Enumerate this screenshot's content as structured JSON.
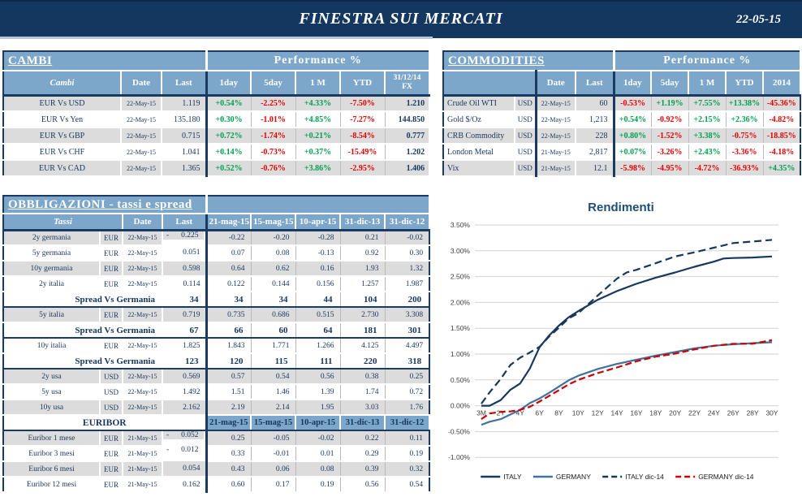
{
  "header": {
    "title": "FINESTRA SUI MERCATI",
    "date": "22-05-15"
  },
  "colors": {
    "topbar_navy": "#14375f",
    "header_blue": "#7da7ca",
    "row_gray": "#dcdcdc",
    "positive_green": "#00a050",
    "negative_red": "#e60000",
    "italy_line": "#17375e",
    "germany_line": "#41719c",
    "germany_dic14_line": "#cc0000"
  },
  "cambi": {
    "title": "CAMBI",
    "performance_label": "Performance  %",
    "headers": [
      "Cambi",
      "Date",
      "Last",
      "1day",
      "5day",
      "1 M",
      "YTD",
      "31/12/14",
      "FX"
    ],
    "rows": [
      [
        "EUR Vs USD",
        "22-May-15",
        "1.119",
        "+0.54%",
        "-2.25%",
        "+4.33%",
        "-7.50%",
        "1.210"
      ],
      [
        "EUR Vs Yen",
        "22-May-15",
        "135.180",
        "+0.30%",
        "-1.01%",
        "+4.85%",
        "-7.27%",
        "144.850"
      ],
      [
        "EUR Vs GBP",
        "22-May-15",
        "0.715",
        "+0.72%",
        "-1.74%",
        "+0.21%",
        "-8.54%",
        "0.777"
      ],
      [
        "EUR Vs CHF",
        "22-May-15",
        "1.041",
        "+0.14%",
        "-0.73%",
        "+0.37%",
        "-15.49%",
        "1.202"
      ],
      [
        "EUR Vs CAD",
        "22-May-15",
        "1.365",
        "+0.52%",
        "-0.76%",
        "+3.86%",
        "-2.95%",
        "1.406"
      ]
    ]
  },
  "commodities": {
    "title": "COMMODITIES",
    "performance_label": "Performance  %",
    "headers": [
      "Date",
      "Last",
      "1day",
      "5day",
      "1 M",
      "YTD",
      "2014"
    ],
    "rows": [
      [
        "Crude Oil WTI",
        "USD",
        "22-May-15",
        "60",
        "-0.53%",
        "+1.19%",
        "+7.55%",
        "+13.38%",
        "-45.36%"
      ],
      [
        "Gold $/Oz",
        "USD",
        "22-May-15",
        "1,213",
        "+0.54%",
        "-0.92%",
        "+2.15%",
        "+2.36%",
        "-4.82%"
      ],
      [
        "CRB Commodity",
        "USD",
        "22-May-15",
        "228",
        "+0.80%",
        "-1.52%",
        "+3.38%",
        "-0.75%",
        "-18.85%"
      ],
      [
        "London Metal",
        "USD",
        "21-May-15",
        "2,817",
        "+0.07%",
        "-3.26%",
        "+2.43%",
        "-3.36%",
        "-4.18%"
      ],
      [
        "Vix",
        "USD",
        "21-May-15",
        "12.1",
        "-5.98%",
        "-4.95%",
        "-4.72%",
        "-36.93%",
        "+4.35%"
      ]
    ]
  },
  "obbligazioni": {
    "title": "OBBLIGAZIONI - tassi e spread",
    "headers": [
      "Tassi",
      "Date",
      "Last",
      "21-mag-15",
      "15-mag-15",
      "10-apr-15",
      "31-dic-13",
      "31-dic-12"
    ],
    "rows": [
      {
        "type": "data",
        "name": "2y germania",
        "ccy": "EUR",
        "date": "22-May-15",
        "neg": true,
        "last": "0.225",
        "vals": [
          "-0.22",
          "-0.20",
          "-0.28",
          "0.21",
          "-0.02"
        ]
      },
      {
        "type": "data",
        "name": "5y germania",
        "ccy": "EUR",
        "date": "22-May-15",
        "last": "0.051",
        "vals": [
          "0.07",
          "0.08",
          "-0.13",
          "0.92",
          "0.30"
        ]
      },
      {
        "type": "data",
        "name": "10y germania",
        "ccy": "EUR",
        "date": "22-May-15",
        "last": "0.598",
        "vals": [
          "0.64",
          "0.62",
          "0.16",
          "1.93",
          "1.32"
        ]
      },
      {
        "type": "data",
        "sep": true,
        "name": "2y italia",
        "ccy": "EUR",
        "date": "22-May-15",
        "last": "0.114",
        "vals": [
          "0.122",
          "0.144",
          "0.156",
          "1.257",
          "1.987"
        ]
      },
      {
        "type": "spread",
        "label": "Spread Vs Germania",
        "last": "34",
        "vals": [
          "34",
          "34",
          "44",
          "104",
          "200"
        ]
      },
      {
        "type": "data",
        "name": "5y italia",
        "ccy": "EUR",
        "date": "22-May-15",
        "last": "0.719",
        "vals": [
          "0.735",
          "0.686",
          "0.515",
          "2.730",
          "3.308"
        ]
      },
      {
        "type": "spread",
        "label": "Spread Vs Germania",
        "last": "67",
        "vals": [
          "66",
          "60",
          "64",
          "181",
          "301"
        ]
      },
      {
        "type": "data",
        "name": "10y italia",
        "ccy": "EUR",
        "date": "22-May-15",
        "last": "1.825",
        "vals": [
          "1.843",
          "1.771",
          "1.266",
          "4.125",
          "4.497"
        ]
      },
      {
        "type": "spread",
        "label": "Spread Vs Germania",
        "last": "123",
        "vals": [
          "120",
          "115",
          "111",
          "220",
          "318"
        ]
      },
      {
        "type": "data",
        "name": "2y usa",
        "ccy": "USD",
        "date": "22-May-15",
        "last": "0.569",
        "vals": [
          "0.57",
          "0.54",
          "0.56",
          "0.38",
          "0.25"
        ]
      },
      {
        "type": "data",
        "name": "5y usa",
        "ccy": "USD",
        "date": "22-May-15",
        "last": "1.492",
        "vals": [
          "1.51",
          "1.46",
          "1.39",
          "1.74",
          "0.72"
        ]
      },
      {
        "type": "data",
        "name": "10y usa",
        "ccy": "USD",
        "date": "22-May-15",
        "last": "2.162",
        "vals": [
          "2.19",
          "2.14",
          "1.95",
          "3.03",
          "1.76"
        ]
      },
      {
        "type": "subheader",
        "label": "EURIBOR",
        "dates": [
          "21-mag-15",
          "15-mag-15",
          "10-apr-15",
          "31-dic-13",
          "31-dic-12"
        ]
      },
      {
        "type": "data",
        "name": "Euribor 1 mese",
        "ccy": "EUR",
        "date": "21-May-15",
        "neg": true,
        "last": "0.052",
        "vals": [
          "0.25",
          "-0.05",
          "-0.02",
          "0.22",
          "0.11"
        ]
      },
      {
        "type": "data",
        "name": "Euribor 3 mesi",
        "ccy": "EUR",
        "date": "21-May-15",
        "neg": true,
        "last": "0.012",
        "vals": [
          "0.33",
          "-0.01",
          "0.01",
          "0.29",
          "0.19"
        ]
      },
      {
        "type": "data",
        "name": "Euribor 6 mesi",
        "ccy": "EUR",
        "date": "21-May-15",
        "last": "0.054",
        "vals": [
          "0.43",
          "0.06",
          "0.08",
          "0.39",
          "0.32"
        ]
      },
      {
        "type": "data",
        "name": "Euribor 12 mesi",
        "ccy": "EUR",
        "date": "21-May-15",
        "last": "0.162",
        "vals": [
          "0.60",
          "0.17",
          "0.19",
          "0.56",
          "0.54"
        ]
      }
    ]
  },
  "chart_data": {
    "type": "line",
    "title": "Rendimenti",
    "categories": [
      "3M",
      "2Y",
      "4Y",
      "6Y",
      "8Y",
      "10Y",
      "12Y",
      "14Y",
      "16Y",
      "18Y",
      "20Y",
      "22Y",
      "24Y",
      "26Y",
      "28Y",
      "30Y"
    ],
    "category_years": [
      0.25,
      2,
      4,
      6,
      8,
      10,
      12,
      14,
      16,
      18,
      20,
      22,
      24,
      26,
      28,
      30
    ],
    "ylim": [
      -1.0,
      3.5
    ],
    "ytick_step": 0.5,
    "ylabel_format": "percent_2dp",
    "grid": "horizontal",
    "legend_position": "bottom",
    "series": [
      {
        "name": "ITALY",
        "color": "#17375e",
        "dash": null,
        "points": [
          [
            0.25,
            0.0
          ],
          [
            1,
            0.0
          ],
          [
            2,
            0.11
          ],
          [
            3,
            0.31
          ],
          [
            4,
            0.43
          ],
          [
            5,
            0.72
          ],
          [
            6,
            1.13
          ],
          [
            7,
            1.36
          ],
          [
            8,
            1.55
          ],
          [
            9,
            1.71
          ],
          [
            10,
            1.83
          ],
          [
            12,
            2.05
          ],
          [
            14,
            2.22
          ],
          [
            16,
            2.36
          ],
          [
            18,
            2.48
          ],
          [
            20,
            2.58
          ],
          [
            22,
            2.69
          ],
          [
            24,
            2.79
          ],
          [
            25,
            2.85
          ],
          [
            26,
            2.86
          ],
          [
            28,
            2.87
          ],
          [
            30,
            2.89
          ]
        ]
      },
      {
        "name": "GERMANY",
        "color": "#41719c",
        "dash": null,
        "points": [
          [
            0.25,
            -0.37
          ],
          [
            1,
            -0.31
          ],
          [
            2,
            -0.26
          ],
          [
            3,
            -0.17
          ],
          [
            4,
            -0.08
          ],
          [
            5,
            0.05
          ],
          [
            6,
            0.14
          ],
          [
            7,
            0.25
          ],
          [
            8,
            0.37
          ],
          [
            9,
            0.49
          ],
          [
            10,
            0.58
          ],
          [
            12,
            0.71
          ],
          [
            14,
            0.81
          ],
          [
            16,
            0.89
          ],
          [
            18,
            0.97
          ],
          [
            20,
            1.04
          ],
          [
            22,
            1.11
          ],
          [
            24,
            1.16
          ],
          [
            26,
            1.19
          ],
          [
            28,
            1.21
          ],
          [
            30,
            1.23
          ]
        ]
      },
      {
        "name": "ITALY dic-14",
        "color": "#17375e",
        "dash": "9 5",
        "points": [
          [
            0.25,
            0.04
          ],
          [
            1,
            0.26
          ],
          [
            2,
            0.52
          ],
          [
            3,
            0.79
          ],
          [
            4,
            0.93
          ],
          [
            5,
            1.03
          ],
          [
            6,
            1.14
          ],
          [
            7,
            1.34
          ],
          [
            8,
            1.51
          ],
          [
            9,
            1.69
          ],
          [
            10,
            1.79
          ],
          [
            12,
            2.13
          ],
          [
            14,
            2.46
          ],
          [
            15,
            2.58
          ],
          [
            16,
            2.63
          ],
          [
            18,
            2.76
          ],
          [
            20,
            2.89
          ],
          [
            22,
            2.97
          ],
          [
            24,
            3.06
          ],
          [
            26,
            3.15
          ],
          [
            28,
            3.18
          ],
          [
            30,
            3.21
          ]
        ]
      },
      {
        "name": "GERMANY dic-14",
        "color": "#cc0000",
        "dash": "8 4",
        "points": [
          [
            0.25,
            -0.26
          ],
          [
            1,
            -0.15
          ],
          [
            2,
            -0.12
          ],
          [
            3,
            -0.11
          ],
          [
            4,
            -0.08
          ],
          [
            5,
            -0.02
          ],
          [
            6,
            0.08
          ],
          [
            7,
            0.19
          ],
          [
            8,
            0.3
          ],
          [
            9,
            0.41
          ],
          [
            10,
            0.5
          ],
          [
            12,
            0.63
          ],
          [
            14,
            0.74
          ],
          [
            16,
            0.86
          ],
          [
            18,
            0.95
          ],
          [
            20,
            1.01
          ],
          [
            22,
            1.09
          ],
          [
            24,
            1.16
          ],
          [
            26,
            1.2
          ],
          [
            28,
            1.2
          ],
          [
            30,
            1.27
          ]
        ]
      }
    ]
  }
}
